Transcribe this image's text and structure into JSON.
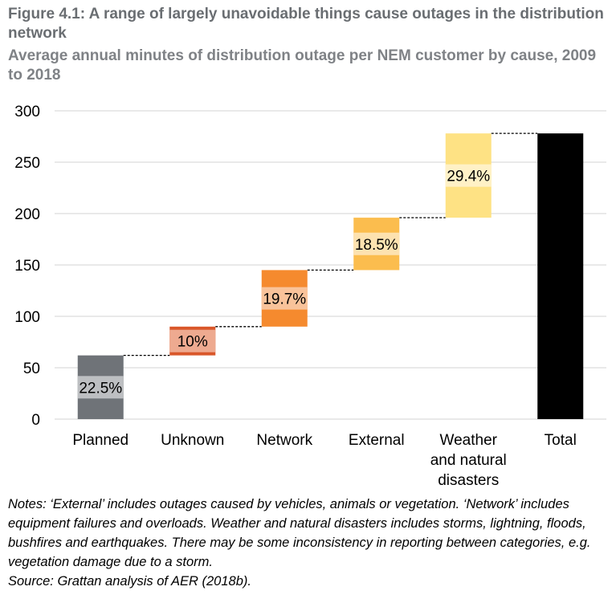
{
  "title": "Figure 4.1: A range of largely unavoidable things cause outages in the distribution network",
  "subtitle": "Average annual minutes of distribution outage per NEM customer by cause, 2009 to 2018",
  "notes": "Notes: ‘External’ includes outages caused by vehicles, animals or vegetation. ‘Network’ includes equipment failures and overloads. Weather and natural disasters includes storms, lightning, floods, bushfires and earthquakes. There may be some inconsistency in reporting between categories, e.g. vegetation damage due to a storm.",
  "source": "Source: Grattan analysis of AER (2018b).",
  "chart_data": {
    "type": "bar",
    "subtype": "waterfall",
    "ylim": [
      0,
      300
    ],
    "yticks": [
      0,
      50,
      100,
      150,
      200,
      250,
      300
    ],
    "grid": true,
    "categories": [
      {
        "lines": [
          "Planned"
        ],
        "start": 0,
        "end": 62,
        "label": "22.5%",
        "color": "#6f7378",
        "band": "#bdbfc2"
      },
      {
        "lines": [
          "Unknown"
        ],
        "start": 62,
        "end": 90,
        "label": "10%",
        "color": "#d9572a",
        "band": "#eeaa90"
      },
      {
        "lines": [
          "Network"
        ],
        "start": 90,
        "end": 145,
        "label": "19.7%",
        "color": "#f58a2e",
        "band": "#f9c39a"
      },
      {
        "lines": [
          "External"
        ],
        "start": 145,
        "end": 196,
        "label": "18.5%",
        "color": "#fbbd4e",
        "band": "#fde2b0"
      },
      {
        "lines": [
          "Weather",
          "and natural",
          "disasters"
        ],
        "start": 196,
        "end": 278,
        "label": "29.4%",
        "color": "#fee284",
        "band": "#fff1c6"
      },
      {
        "lines": [
          "Total"
        ],
        "start": 0,
        "end": 278,
        "label": "",
        "color": "#000000",
        "band": ""
      }
    ],
    "colors": {
      "grid": "#d3d3d3",
      "connector": "#000000"
    }
  }
}
